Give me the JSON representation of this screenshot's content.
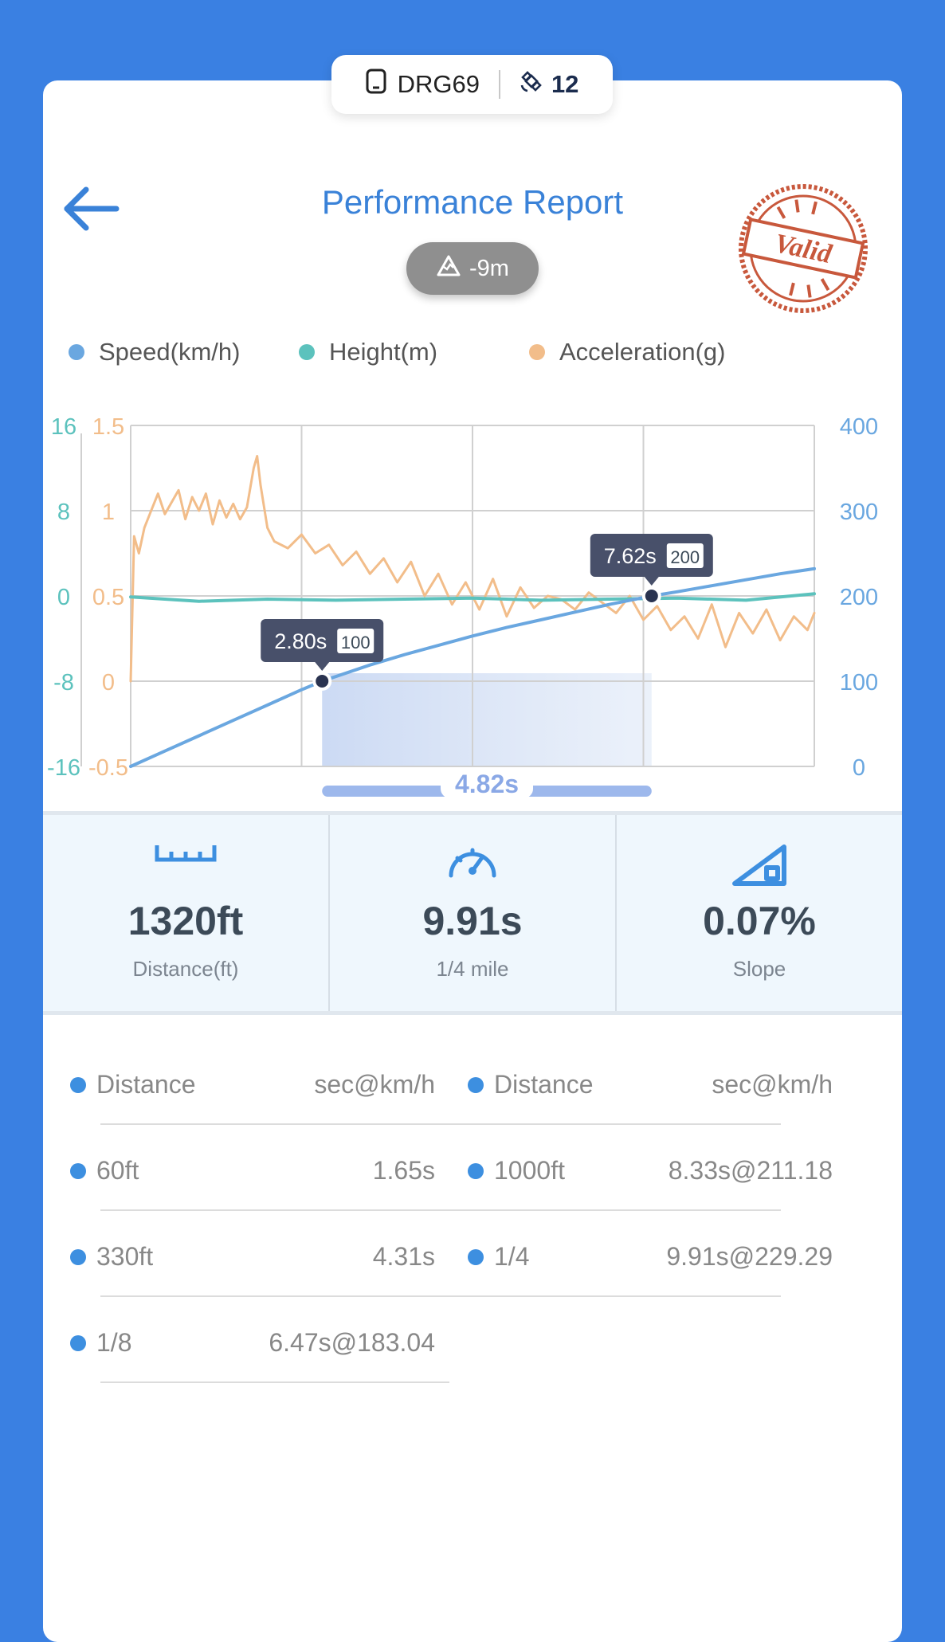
{
  "device": {
    "name": "DRG69",
    "satellites": "12",
    "device_icon": "phone-icon",
    "sat_icon": "satellite-icon"
  },
  "header": {
    "title": "Performance Report",
    "elevation": "-9m",
    "stamp_text": "Valid",
    "back_icon": "arrow-left-icon"
  },
  "colors": {
    "background": "#3a80e2",
    "speed": "#6aa7e0",
    "height": "#5cc2bd",
    "acceleration": "#f2bd8a",
    "tooltip": "#48506a"
  },
  "legend": [
    "Speed(km/h)",
    "Height(m)",
    "Acceleration(g)"
  ],
  "chart_data": {
    "type": "line",
    "series": [
      {
        "name": "Speed(km/h)",
        "axis": "right",
        "x": [
          0,
          0.5,
          1,
          1.5,
          2,
          2.5,
          2.8,
          3.5,
          4,
          4.5,
          5,
          5.5,
          6,
          6.5,
          7,
          7.62,
          8,
          8.5,
          9,
          9.5,
          10
        ],
        "values": [
          0,
          18,
          36,
          54,
          72,
          90,
          100,
          119,
          131,
          142,
          153,
          163,
          172,
          181,
          190,
          200,
          205,
          212,
          219,
          226,
          232
        ]
      },
      {
        "name": "Height(m)",
        "axis": "left-outer",
        "x": [
          0,
          1,
          2,
          3,
          4,
          5,
          6,
          7,
          8,
          9,
          10
        ],
        "values": [
          -0.1,
          -0.5,
          -0.3,
          -0.4,
          -0.3,
          -0.2,
          -0.4,
          -0.3,
          -0.2,
          -0.4,
          0.2
        ]
      },
      {
        "name": "Acceleration(g)",
        "axis": "left-inner",
        "x": [
          0,
          0.05,
          0.12,
          0.2,
          0.3,
          0.4,
          0.5,
          0.6,
          0.7,
          0.8,
          0.9,
          1.0,
          1.1,
          1.2,
          1.3,
          1.4,
          1.5,
          1.6,
          1.7,
          1.8,
          1.85,
          1.9,
          2.0,
          2.1,
          2.3,
          2.5,
          2.7,
          2.9,
          3.1,
          3.3,
          3.5,
          3.7,
          3.9,
          4.1,
          4.3,
          4.5,
          4.7,
          4.9,
          5.1,
          5.3,
          5.5,
          5.7,
          5.9,
          6.1,
          6.3,
          6.5,
          6.7,
          6.9,
          7.1,
          7.3,
          7.5,
          7.7,
          7.9,
          8.1,
          8.3,
          8.5,
          8.7,
          8.9,
          9.1,
          9.3,
          9.5,
          9.7,
          9.9,
          10.0
        ],
        "values": [
          0,
          0.85,
          0.75,
          0.9,
          1.0,
          1.1,
          0.98,
          1.05,
          1.12,
          0.95,
          1.08,
          1.0,
          1.1,
          0.92,
          1.06,
          0.96,
          1.04,
          0.95,
          1.02,
          1.25,
          1.32,
          1.15,
          0.9,
          0.82,
          0.78,
          0.86,
          0.75,
          0.8,
          0.68,
          0.76,
          0.63,
          0.72,
          0.58,
          0.7,
          0.5,
          0.63,
          0.45,
          0.58,
          0.42,
          0.6,
          0.38,
          0.55,
          0.43,
          0.5,
          0.48,
          0.42,
          0.52,
          0.46,
          0.4,
          0.5,
          0.36,
          0.44,
          0.3,
          0.38,
          0.25,
          0.45,
          0.2,
          0.4,
          0.28,
          0.42,
          0.24,
          0.38,
          0.3,
          0.4
        ]
      }
    ],
    "axes": {
      "left_outer": {
        "ticks": [
          "16",
          "8",
          "0",
          "-8",
          "-16"
        ],
        "ylim": [
          -16,
          16
        ]
      },
      "left_inner": {
        "ticks": [
          "1.5",
          "1",
          "0.5",
          "0",
          "-0.5"
        ],
        "ylim": [
          -0.5,
          1.5
        ]
      },
      "right": {
        "ticks": [
          "400",
          "300",
          "200",
          "100",
          "0"
        ],
        "ylim": [
          0,
          400
        ]
      },
      "xlim": [
        0,
        10
      ]
    },
    "grid": true,
    "legend_position": "top",
    "markers": [
      {
        "x": 2.8,
        "y": 100,
        "time": "2.80s",
        "speed": "100"
      },
      {
        "x": 7.62,
        "y": 200,
        "time": "7.62s",
        "speed": "200"
      }
    ],
    "interval": {
      "from": 2.8,
      "to": 7.62,
      "label": "4.82s"
    }
  },
  "stats": [
    {
      "icon": "ruler-icon",
      "value": "1320ft",
      "label": "Distance(ft)"
    },
    {
      "icon": "speedometer-icon",
      "value": "9.91s",
      "label": "1/4 mile"
    },
    {
      "icon": "slope-icon",
      "value": "0.07%",
      "label": "Slope"
    }
  ],
  "splits": {
    "headers": {
      "left_label": "Distance",
      "left_value": "sec@km/h",
      "right_label": "Distance",
      "right_value": "sec@km/h"
    },
    "left": [
      {
        "label": "60ft",
        "value": "1.65s"
      },
      {
        "label": "330ft",
        "value": "4.31s"
      },
      {
        "label": "1/8",
        "value": "6.47s@183.04"
      }
    ],
    "right": [
      {
        "label": "1000ft",
        "value": "8.33s@211.18"
      },
      {
        "label": "1/4",
        "value": "9.91s@229.29"
      }
    ]
  }
}
